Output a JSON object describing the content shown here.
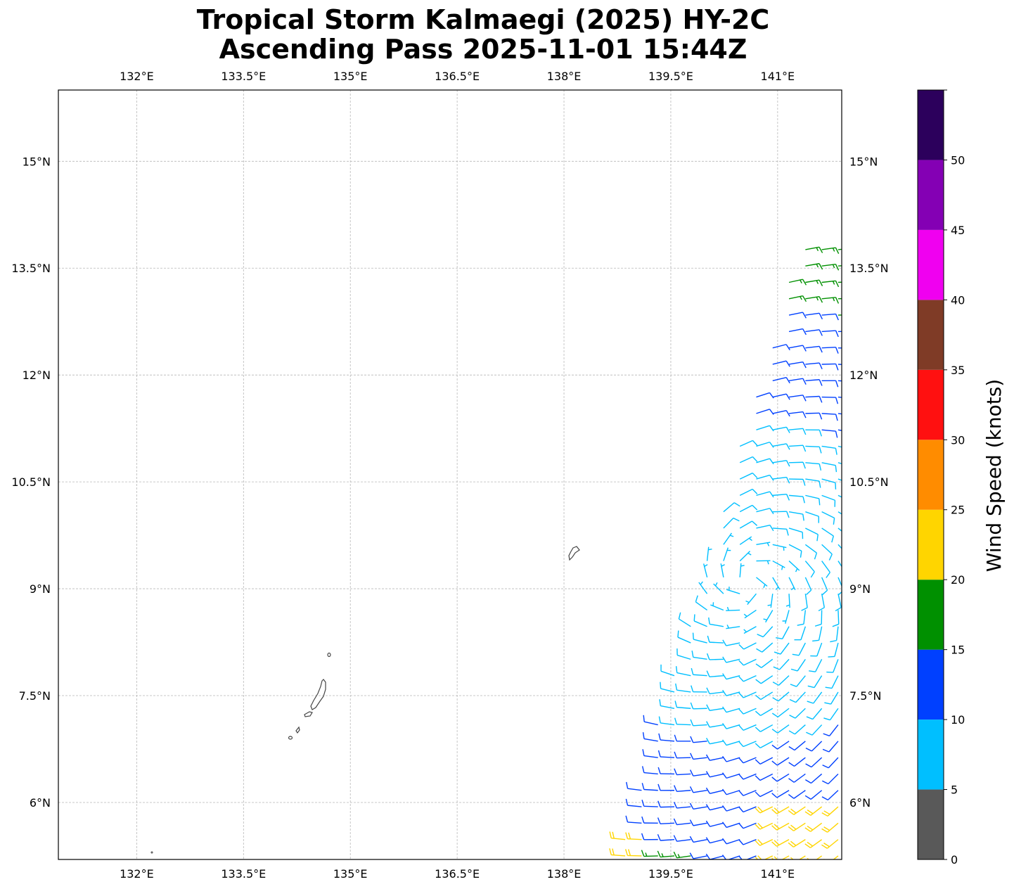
{
  "title_line1": "Tropical Storm Kalmaegi (2025) HY-2C",
  "title_line2": "Ascending Pass 2025-11-01 15:44Z",
  "map": {
    "lon_range": [
      130.9,
      141.9
    ],
    "lat_range": [
      5.2,
      16.0
    ],
    "lon_ticks": [
      {
        "value": 132.0,
        "label": "132°E"
      },
      {
        "value": 133.5,
        "label": "133.5°E"
      },
      {
        "value": 135.0,
        "label": "135°E"
      },
      {
        "value": 136.5,
        "label": "136.5°E"
      },
      {
        "value": 138.0,
        "label": "138°E"
      },
      {
        "value": 139.5,
        "label": "139.5°E"
      },
      {
        "value": 141.0,
        "label": "141°E"
      }
    ],
    "lat_ticks": [
      {
        "value": 15.0,
        "label": "15°N"
      },
      {
        "value": 13.5,
        "label": "13.5°N"
      },
      {
        "value": 12.0,
        "label": "12°N"
      },
      {
        "value": 10.5,
        "label": "10.5°N"
      },
      {
        "value": 9.0,
        "label": "9°N"
      },
      {
        "value": 7.5,
        "label": "7.5°N"
      },
      {
        "value": 6.0,
        "label": "6°N"
      }
    ],
    "gridlines": true,
    "coastline_color": "#444444"
  },
  "colorbar": {
    "label": "Wind Speed (knots)",
    "ticks": [
      "0",
      "5",
      "10",
      "15",
      "20",
      "25",
      "30",
      "35",
      "40",
      "45",
      "50"
    ],
    "bins": [
      {
        "from": 0,
        "to": 5,
        "color": "#595959"
      },
      {
        "from": 5,
        "to": 10,
        "color": "#00bfff"
      },
      {
        "from": 10,
        "to": 15,
        "color": "#0040ff"
      },
      {
        "from": 15,
        "to": 20,
        "color": "#009000"
      },
      {
        "from": 20,
        "to": 25,
        "color": "#ffd500"
      },
      {
        "from": 25,
        "to": 30,
        "color": "#ff8c00"
      },
      {
        "from": 30,
        "to": 35,
        "color": "#ff1010"
      },
      {
        "from": 35,
        "to": 40,
        "color": "#7f3b26"
      },
      {
        "from": 40,
        "to": 45,
        "color": "#f000f0"
      },
      {
        "from": 45,
        "to": 50,
        "color": "#8400b4"
      },
      {
        "from": 50,
        "to": 55,
        "color": "#2c005c"
      }
    ]
  },
  "swath": {
    "center": [
      140.6,
      9.1
    ],
    "spacing_deg": 0.23,
    "eastern_edge_lon": 141.9
  }
}
